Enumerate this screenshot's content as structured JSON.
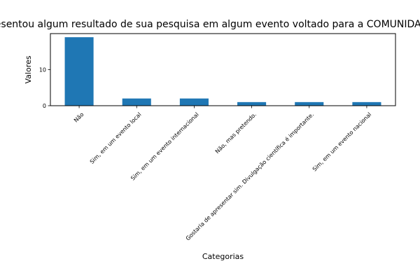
{
  "chart_data": {
    "type": "bar",
    "title": "Você já apresentou algum resultado de sua pesquisa em algum evento voltado para a COMUNIDADE, ou seja,",
    "xlabel": "Categorias",
    "ylabel": "Valores",
    "categories": [
      "Não",
      "Sim, em um evento local",
      "Sim, em um evento internacional",
      "Não, mas pretendo.",
      "Gostaria de apresentar sim. Divulgação científica é importante.",
      "Sim, em um evento nacional"
    ],
    "values": [
      19,
      2,
      2,
      1,
      1,
      1
    ],
    "ylim": [
      0,
      20
    ],
    "yticks": [
      0,
      10
    ],
    "grid": false,
    "bar_color": "#1f77b4"
  }
}
